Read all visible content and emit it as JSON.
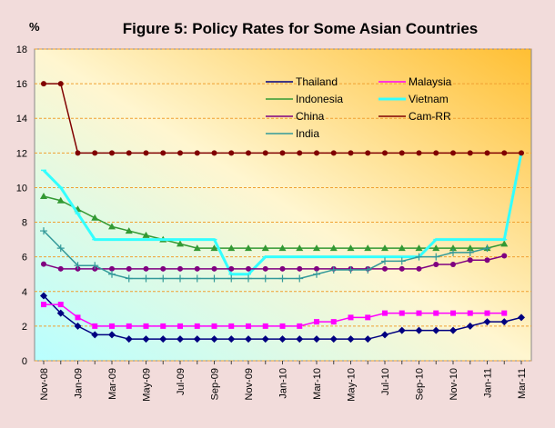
{
  "chart_data": {
    "type": "line",
    "title": "Figure 5: Policy Rates for Some Asian Countries",
    "y_label": "%",
    "categories": [
      "Nov-08",
      null,
      "Jan-09",
      null,
      "Mar-09",
      null,
      "May-09",
      null,
      "Jul-09",
      null,
      "Sep-09",
      null,
      "Nov-09",
      null,
      "Jan-10",
      null,
      "Mar-10",
      null,
      "May-10",
      null,
      "Jul-10",
      null,
      "Sep-10",
      null,
      "Nov-10",
      null,
      "Jan-11",
      null,
      "Mar-11"
    ],
    "ylim": [
      0,
      18
    ],
    "yticks": [
      0,
      2,
      4,
      6,
      8,
      10,
      12,
      14,
      16,
      18
    ],
    "grid": true,
    "series": [
      {
        "name": "Thailand",
        "color": "#000080",
        "marker": "diamond",
        "values": [
          3.75,
          2.75,
          2.0,
          1.5,
          1.5,
          1.25,
          1.25,
          1.25,
          1.25,
          1.25,
          1.25,
          1.25,
          1.25,
          1.25,
          1.25,
          1.25,
          1.25,
          1.25,
          1.25,
          1.25,
          1.5,
          1.75,
          1.75,
          1.75,
          1.75,
          2.0,
          2.25,
          2.25,
          2.5
        ]
      },
      {
        "name": "Malaysia",
        "color": "#ff00ff",
        "marker": "square",
        "values": [
          3.25,
          3.25,
          2.5,
          2.0,
          2.0,
          2.0,
          2.0,
          2.0,
          2.0,
          2.0,
          2.0,
          2.0,
          2.0,
          2.0,
          2.0,
          2.0,
          2.25,
          2.25,
          2.5,
          2.5,
          2.75,
          2.75,
          2.75,
          2.75,
          2.75,
          2.75,
          2.75,
          2.75,
          null
        ]
      },
      {
        "name": "Indonesia",
        "color": "#339933",
        "marker": "triangle",
        "values": [
          9.5,
          9.25,
          8.75,
          8.25,
          7.75,
          7.5,
          7.25,
          7.0,
          6.75,
          6.5,
          6.5,
          6.5,
          6.5,
          6.5,
          6.5,
          6.5,
          6.5,
          6.5,
          6.5,
          6.5,
          6.5,
          6.5,
          6.5,
          6.5,
          6.5,
          6.5,
          6.5,
          6.75,
          null
        ]
      },
      {
        "name": "Vietnam",
        "color": "#33ffff",
        "marker": "dash",
        "values": [
          11,
          10,
          8.5,
          7,
          7,
          7,
          7,
          7,
          7,
          7,
          7,
          5,
          5,
          6,
          6,
          6,
          6,
          6,
          6,
          6,
          6,
          6,
          6,
          7,
          7,
          7,
          7,
          7,
          12
        ]
      },
      {
        "name": "China",
        "color": "#800080",
        "marker": "circle",
        "values": [
          5.58,
          5.31,
          5.31,
          5.31,
          5.31,
          5.31,
          5.31,
          5.31,
          5.31,
          5.31,
          5.31,
          5.31,
          5.31,
          5.31,
          5.31,
          5.31,
          5.31,
          5.31,
          5.31,
          5.31,
          5.31,
          5.31,
          5.31,
          5.56,
          5.56,
          5.81,
          5.81,
          6.06,
          null
        ]
      },
      {
        "name": "Cam-RR",
        "color": "#800000",
        "marker": "circle",
        "values": [
          16,
          16,
          12,
          12,
          12,
          12,
          12,
          12,
          12,
          12,
          12,
          12,
          12,
          12,
          12,
          12,
          12,
          12,
          12,
          12,
          12,
          12,
          12,
          12,
          12,
          12,
          12,
          12,
          12
        ]
      },
      {
        "name": "India",
        "color": "#339999",
        "marker": "plus",
        "values": [
          7.5,
          6.5,
          5.5,
          5.5,
          5.0,
          4.75,
          4.75,
          4.75,
          4.75,
          4.75,
          4.75,
          4.75,
          4.75,
          4.75,
          4.75,
          4.75,
          5.0,
          5.25,
          5.25,
          5.25,
          5.75,
          5.75,
          6.0,
          6.0,
          6.25,
          6.25,
          6.5,
          null,
          null
        ]
      }
    ]
  }
}
